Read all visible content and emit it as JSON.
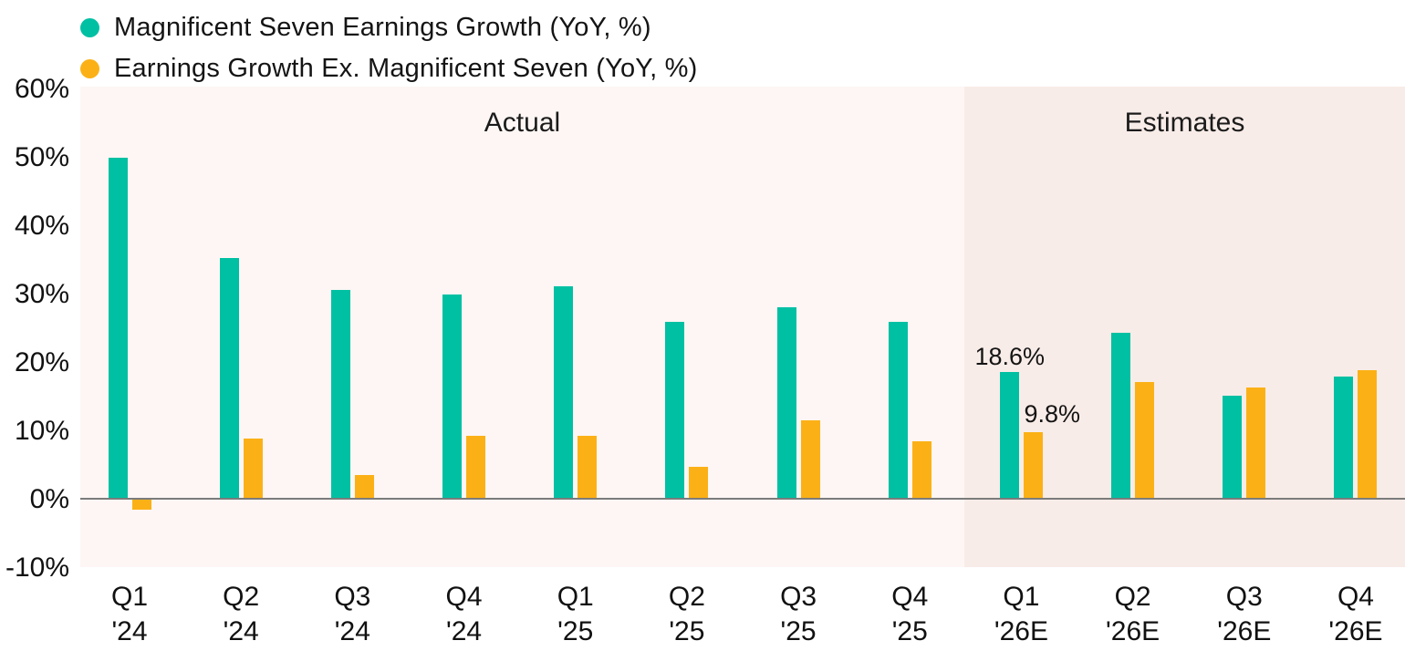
{
  "chart_data": {
    "type": "bar",
    "title": "",
    "xlabel": "",
    "ylabel": "",
    "ylim": [
      -10,
      60
    ],
    "grid": false,
    "legend_position": "top-left",
    "yticks": [
      "60%",
      "50%",
      "40%",
      "30%",
      "20%",
      "10%",
      "0%",
      "-10%"
    ],
    "ytick_values": [
      60,
      50,
      40,
      30,
      20,
      10,
      0,
      -10
    ],
    "categories": [
      {
        "line1": "Q1",
        "line2": "'24"
      },
      {
        "line1": "Q2",
        "line2": "'24"
      },
      {
        "line1": "Q3",
        "line2": "'24"
      },
      {
        "line1": "Q4",
        "line2": "'24"
      },
      {
        "line1": "Q1",
        "line2": "'25"
      },
      {
        "line1": "Q2",
        "line2": "'25"
      },
      {
        "line1": "Q3",
        "line2": "'25"
      },
      {
        "line1": "Q4",
        "line2": "'25"
      },
      {
        "line1": "Q1",
        "line2": "'26E"
      },
      {
        "line1": "Q2",
        "line2": "'26E"
      },
      {
        "line1": "Q3",
        "line2": "'26E"
      },
      {
        "line1": "Q4",
        "line2": "'26E"
      }
    ],
    "series": [
      {
        "name": "Magnificent Seven Earnings Growth (YoY, %)",
        "color": "#00C0A3",
        "values": [
          50.0,
          35.3,
          30.6,
          30.0,
          31.2,
          26.0,
          28.1,
          26.0,
          18.6,
          24.3,
          15.1,
          17.9
        ]
      },
      {
        "name": "Earnings Growth Ex. Magnificent Seven (YoY, %)",
        "color": "#FBB116",
        "values": [
          -1.5,
          8.9,
          3.6,
          9.3,
          9.3,
          4.7,
          11.5,
          8.5,
          9.8,
          17.2,
          16.4,
          18.9
        ]
      }
    ],
    "regions": [
      {
        "label": "Actual",
        "from": 0,
        "to": 7
      },
      {
        "label": "Estimates",
        "from": 8,
        "to": 11
      }
    ],
    "annotations": [
      {
        "text": "18.6%",
        "category_index": 8,
        "series": 0
      },
      {
        "text": "9.8%",
        "category_index": 8,
        "series": 1
      }
    ]
  },
  "colors": {
    "actual_band": "#fdf6f4",
    "estimates_band": "#f8ece8",
    "axis_line": "#7b7b7b",
    "text": "#1a1a1a"
  }
}
